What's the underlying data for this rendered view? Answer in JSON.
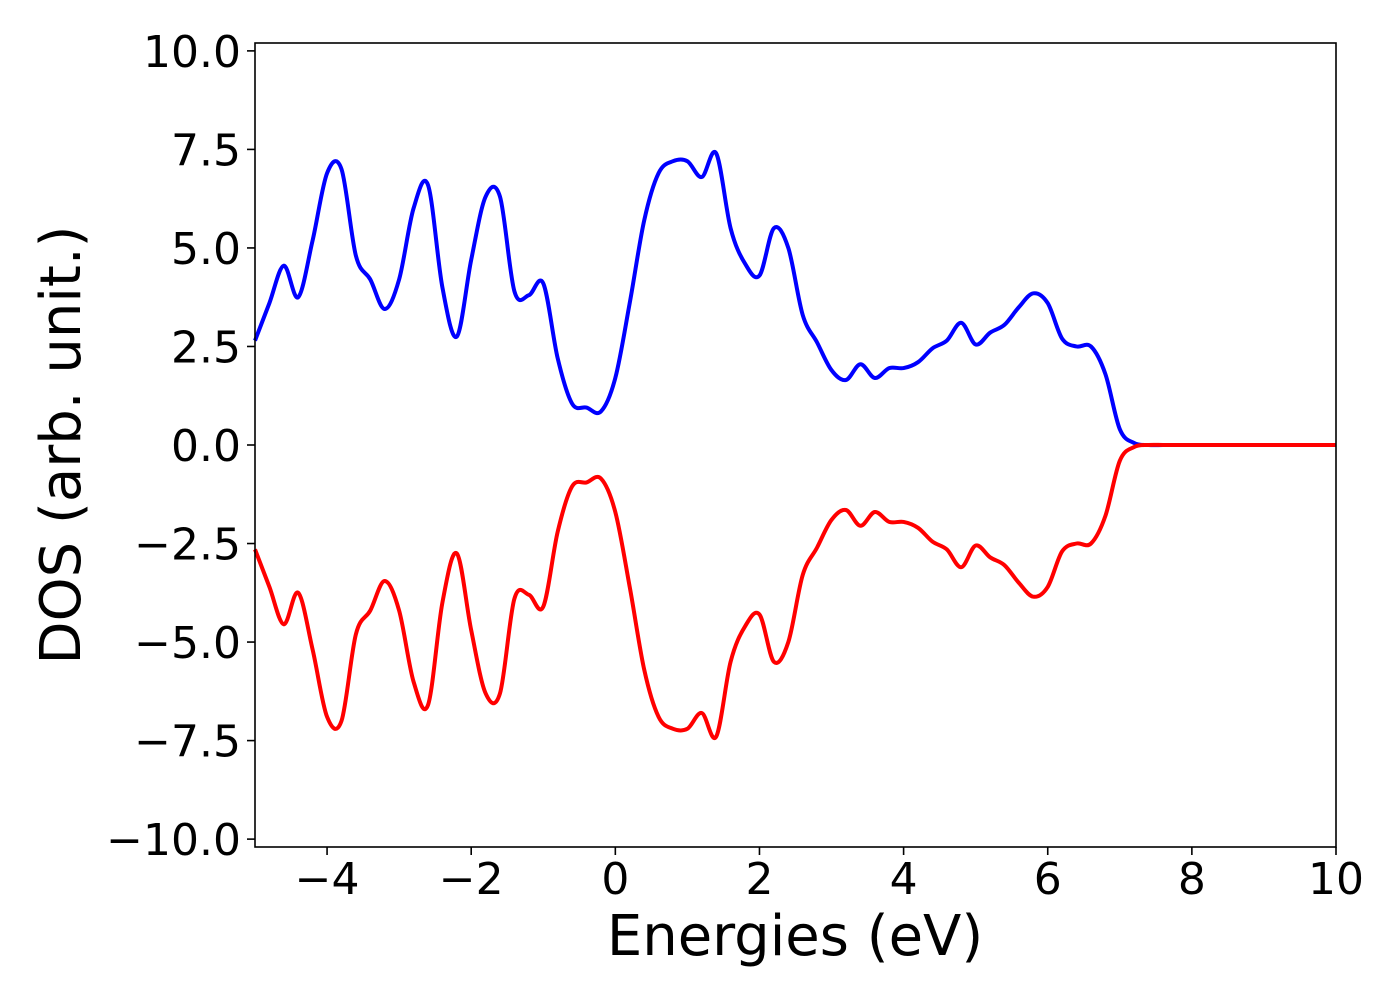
{
  "chart_data": {
    "type": "line",
    "xlabel": "Energies (eV)",
    "ylabel": "DOS (arb. unit.)",
    "xlim": [
      -5,
      10
    ],
    "ylim": [
      -10.2,
      10.2
    ],
    "x_ticks": [
      -4,
      -2,
      0,
      2,
      4,
      6,
      8,
      10
    ],
    "x_tick_labels": [
      "−4",
      "−2",
      "0",
      "2",
      "4",
      "6",
      "8",
      "10"
    ],
    "y_ticks": [
      10,
      7.5,
      5,
      2.5,
      0,
      -2.5,
      -5,
      -7.5,
      -10
    ],
    "y_tick_labels": [
      "10.0",
      "7.5",
      "5.0",
      "2.5",
      "0.0",
      "−2.5",
      "−5.0",
      "−7.5",
      "−10.0"
    ],
    "grid": false,
    "series": [
      {
        "color": "#0000ff",
        "x": [
          -5.0,
          -4.8,
          -4.6,
          -4.4,
          -4.2,
          -4.0,
          -3.8,
          -3.6,
          -3.4,
          -3.2,
          -3.0,
          -2.8,
          -2.6,
          -2.4,
          -2.2,
          -2.0,
          -1.8,
          -1.6,
          -1.4,
          -1.2,
          -1.0,
          -0.8,
          -0.6,
          -0.4,
          -0.2,
          0.0,
          0.2,
          0.4,
          0.6,
          0.8,
          1.0,
          1.2,
          1.4,
          1.6,
          1.8,
          2.0,
          2.2,
          2.4,
          2.6,
          2.8,
          3.0,
          3.2,
          3.4,
          3.6,
          3.8,
          4.0,
          4.2,
          4.4,
          4.6,
          4.8,
          5.0,
          5.2,
          5.4,
          5.6,
          5.8,
          6.0,
          6.2,
          6.4,
          6.6,
          6.8,
          7.0,
          7.2,
          7.4,
          7.6,
          7.8,
          8.0,
          8.2,
          8.4,
          8.6,
          8.8,
          9.0,
          9.5,
          10.0
        ],
        "values": [
          2.65,
          3.6,
          4.55,
          3.75,
          5.2,
          6.9,
          7.0,
          4.8,
          4.2,
          3.45,
          4.2,
          6.0,
          6.6,
          4.0,
          2.75,
          4.7,
          6.3,
          6.3,
          3.9,
          3.8,
          4.1,
          2.2,
          1.05,
          0.95,
          0.85,
          1.7,
          3.6,
          5.7,
          6.9,
          7.2,
          7.2,
          6.8,
          7.4,
          5.5,
          4.6,
          4.3,
          5.5,
          5.0,
          3.3,
          2.6,
          1.9,
          1.65,
          2.05,
          1.7,
          1.95,
          1.95,
          2.1,
          2.45,
          2.65,
          3.1,
          2.55,
          2.85,
          3.05,
          3.5,
          3.85,
          3.6,
          2.7,
          2.5,
          2.5,
          1.8,
          0.4,
          0.05,
          0.0,
          0.0,
          0.0,
          0.0,
          0.0,
          0.0,
          0.0,
          0.0,
          0.0,
          0.0,
          0.0
        ]
      },
      {
        "color": "#ff0000",
        "x": [
          -5.0,
          -4.8,
          -4.6,
          -4.4,
          -4.2,
          -4.0,
          -3.8,
          -3.6,
          -3.4,
          -3.2,
          -3.0,
          -2.8,
          -2.6,
          -2.4,
          -2.2,
          -2.0,
          -1.8,
          -1.6,
          -1.4,
          -1.2,
          -1.0,
          -0.8,
          -0.6,
          -0.4,
          -0.2,
          0.0,
          0.2,
          0.4,
          0.6,
          0.8,
          1.0,
          1.2,
          1.4,
          1.6,
          1.8,
          2.0,
          2.2,
          2.4,
          2.6,
          2.8,
          3.0,
          3.2,
          3.4,
          3.6,
          3.8,
          4.0,
          4.2,
          4.4,
          4.6,
          4.8,
          5.0,
          5.2,
          5.4,
          5.6,
          5.8,
          6.0,
          6.2,
          6.4,
          6.6,
          6.8,
          7.0,
          7.2,
          7.4,
          7.6,
          7.8,
          8.0,
          8.2,
          8.4,
          8.6,
          8.8,
          9.0,
          9.5,
          10.0
        ],
        "values": [
          -2.65,
          -3.6,
          -4.55,
          -3.75,
          -5.2,
          -6.9,
          -7.0,
          -4.8,
          -4.2,
          -3.45,
          -4.2,
          -6.0,
          -6.6,
          -4.0,
          -2.75,
          -4.7,
          -6.3,
          -6.3,
          -3.9,
          -3.8,
          -4.1,
          -2.2,
          -1.05,
          -0.95,
          -0.85,
          -1.7,
          -3.6,
          -5.7,
          -6.9,
          -7.2,
          -7.2,
          -6.8,
          -7.4,
          -5.5,
          -4.6,
          -4.3,
          -5.5,
          -5.0,
          -3.3,
          -2.6,
          -1.9,
          -1.65,
          -2.05,
          -1.7,
          -1.95,
          -1.95,
          -2.1,
          -2.45,
          -2.65,
          -3.1,
          -2.55,
          -2.85,
          -3.05,
          -3.5,
          -3.85,
          -3.6,
          -2.7,
          -2.5,
          -2.5,
          -1.8,
          -0.4,
          -0.05,
          0.0,
          0.0,
          0.0,
          0.0,
          0.0,
          0.0,
          0.0,
          0.0,
          0.0,
          0.0,
          0.0
        ]
      }
    ]
  }
}
